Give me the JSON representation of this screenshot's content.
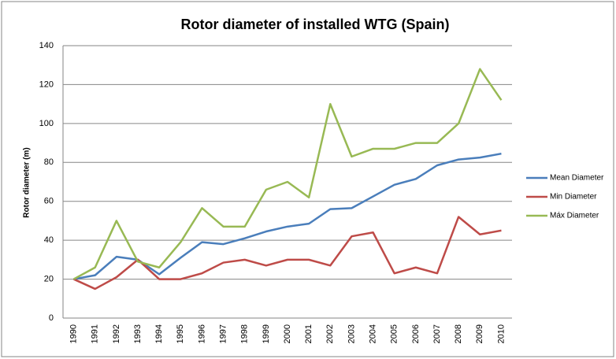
{
  "chart_data": {
    "type": "line",
    "title": "Rotor diameter of installed WTG (Spain)",
    "y_label": "Rotor diameter (m)",
    "categories": [
      "1990",
      "1991",
      "1992",
      "1993",
      "1994",
      "1995",
      "1996",
      "1997",
      "1998",
      "1999",
      "2000",
      "2001",
      "2002",
      "2003",
      "2004",
      "2005",
      "2006",
      "2007",
      "2008",
      "2009",
      "2010"
    ],
    "series": [
      {
        "name": "Mean Diameter",
        "color": "#4a7ebb",
        "values": [
          20,
          22,
          31.5,
          30,
          22.5,
          31,
          39,
          38,
          41,
          44.5,
          47,
          48.5,
          56,
          56.5,
          62.5,
          68.5,
          71.5,
          78.5,
          81.5,
          82.5,
          84.5
        ]
      },
      {
        "name": "Min Diameter",
        "color": "#be4b48",
        "values": [
          20,
          15,
          21,
          30,
          20,
          20,
          23,
          28.5,
          30,
          27,
          30,
          30,
          27,
          42,
          44,
          23,
          26,
          23,
          52,
          43,
          45
        ]
      },
      {
        "name": "Máx Diameter",
        "color": "#98b954",
        "values": [
          20,
          26,
          50,
          29,
          26,
          39,
          56.5,
          47,
          47,
          66,
          70,
          62,
          110,
          83,
          87,
          87,
          90,
          90,
          100,
          128,
          112
        ]
      }
    ],
    "ylim": [
      0,
      140
    ],
    "yticks": [
      0,
      20,
      40,
      60,
      80,
      100,
      120,
      140
    ],
    "grid": true,
    "legend": "right"
  }
}
